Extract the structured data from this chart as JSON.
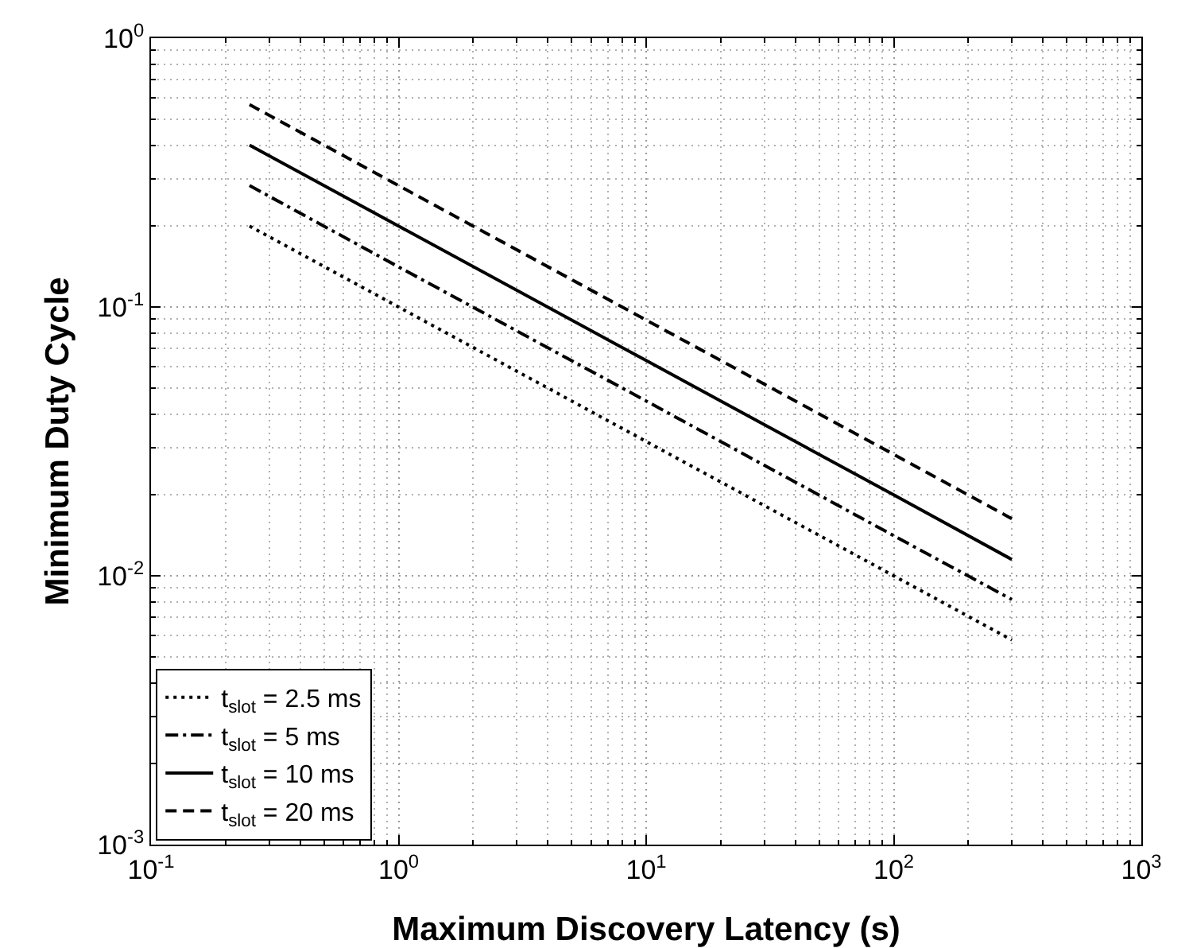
{
  "chart_data": {
    "type": "line",
    "xlabel": "Maximum Discovery Latency (s)",
    "ylabel": "Minimum Duty Cycle",
    "log": "xy",
    "grid": true,
    "legend": "bottom left",
    "marker": "none",
    "xlim": [
      0.1,
      1000
    ],
    "ylim": [
      0.001,
      1
    ],
    "xticks": [
      {
        "value": 0.1,
        "label": "10$^{-1}$"
      },
      {
        "value": 1,
        "label": "10$^{0}$"
      },
      {
        "value": 10,
        "label": "10$^{1}$"
      },
      {
        "value": 100,
        "label": "10$^{2}$"
      },
      {
        "value": 1000,
        "label": "10$^{3}$"
      }
    ],
    "yticks": [
      {
        "value": 0.001,
        "label": "10$^{-3}$"
      },
      {
        "value": 0.01,
        "label": "10$^{-2}$"
      },
      {
        "value": 0.1,
        "label": "10$^{-1}$"
      },
      {
        "value": 1,
        "label": "10$^{0}$"
      }
    ],
    "x": [
      0.25,
      1,
      10,
      100,
      300
    ],
    "series": [
      {
        "name": "t$_{slot}$ = 2.5 ms",
        "color": "#000000",
        "line_style": "dotted",
        "values": [
          0.2,
          0.1,
          0.0316,
          0.01,
          0.00577
        ]
      },
      {
        "name": "t$_{slot}$ = 5 ms",
        "color": "#000000",
        "line_style": "dashdot",
        "values": [
          0.283,
          0.141,
          0.0447,
          0.0141,
          0.00816
        ]
      },
      {
        "name": "t$_{slot}$ = 10 ms",
        "color": "#000000",
        "line_style": "solid",
        "values": [
          0.4,
          0.2,
          0.0632,
          0.02,
          0.0115
        ]
      },
      {
        "name": "t$_{slot}$ = 20 ms",
        "color": "#000000",
        "line_style": "dashed",
        "values": [
          0.566,
          0.283,
          0.0894,
          0.0283,
          0.0163
        ]
      }
    ]
  }
}
